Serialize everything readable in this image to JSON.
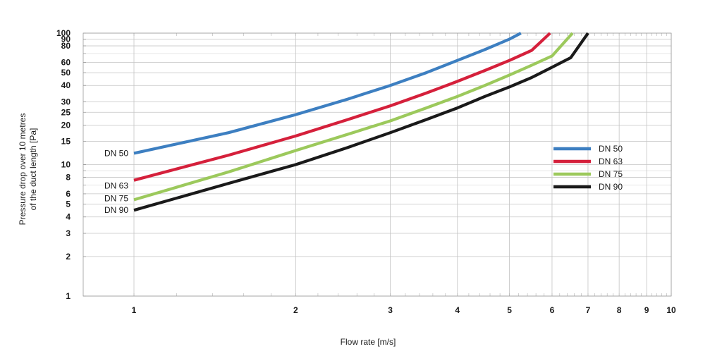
{
  "chart_data": {
    "type": "line",
    "x_scale": "log",
    "y_scale": "log",
    "xlabel": "Flow rate [m/s]",
    "ylabel_lines": [
      "Pressure drop over 10 metres",
      "of the duct length [Pa]"
    ],
    "xlim": [
      1,
      10
    ],
    "ylim": [
      1,
      100
    ],
    "x_ticks": [
      1,
      2,
      3,
      4,
      5,
      6,
      7,
      8,
      9,
      10
    ],
    "y_ticks": [
      1,
      2,
      3,
      4,
      5,
      6,
      8,
      10,
      15,
      20,
      25,
      30,
      40,
      50,
      60,
      80,
      90,
      100
    ],
    "grid": true,
    "legend_position": "right",
    "series": [
      {
        "name": "DN 50",
        "color": "#3d7fc1",
        "x": [
          1,
          1.5,
          2,
          2.5,
          3,
          3.5,
          4,
          4.5,
          5,
          5.25
        ],
        "y": [
          12.2,
          17.5,
          24,
          31.5,
          40,
          50,
          62,
          75,
          90,
          100
        ]
      },
      {
        "name": "DN 63",
        "color": "#d5203b",
        "x": [
          1,
          1.5,
          2,
          2.5,
          3,
          3.5,
          4,
          4.5,
          5,
          5.5,
          5.95
        ],
        "y": [
          7.6,
          11.8,
          16.5,
          22,
          28,
          35,
          43,
          52,
          62,
          74,
          100
        ]
      },
      {
        "name": "DN 75",
        "color": "#9cc95c",
        "x": [
          1,
          1.5,
          2,
          2.5,
          3,
          3.5,
          4,
          4.5,
          5,
          5.5,
          6,
          6.55
        ],
        "y": [
          5.4,
          8.8,
          12.8,
          17,
          21.5,
          27,
          33,
          40,
          48,
          57,
          67,
          100
        ]
      },
      {
        "name": "DN 90",
        "color": "#1a1a1a",
        "x": [
          1,
          1.5,
          2,
          2.5,
          3,
          3.5,
          4,
          4.5,
          5,
          5.5,
          6,
          6.5,
          7
        ],
        "y": [
          4.5,
          7.2,
          10,
          13.5,
          17.5,
          22,
          27,
          33,
          39,
          46,
          55,
          65,
          100
        ]
      }
    ]
  }
}
